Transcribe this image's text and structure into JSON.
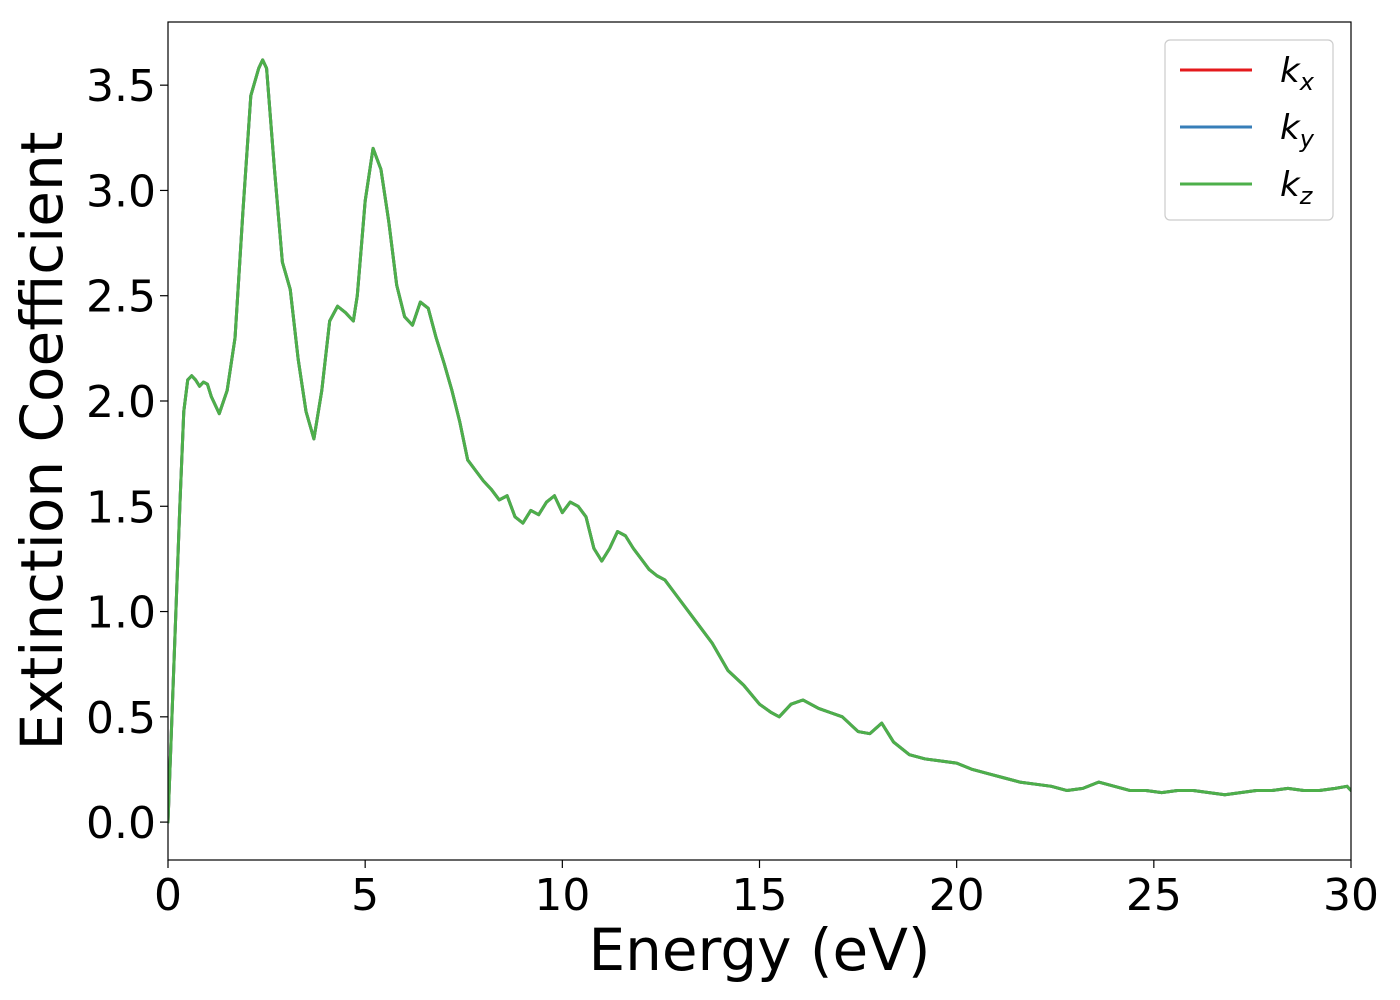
{
  "chart_data": {
    "type": "line",
    "title": "",
    "xlabel": "Energy (eV)",
    "ylabel": "Extinction Coefficient",
    "xlim": [
      0,
      30
    ],
    "ylim": [
      -0.18,
      3.8
    ],
    "xticks": [
      0,
      5,
      10,
      15,
      20,
      25,
      30
    ],
    "xtick_labels": [
      "0",
      "5",
      "10",
      "15",
      "20",
      "25",
      "30"
    ],
    "yticks": [
      0.0,
      0.5,
      1.0,
      1.5,
      2.0,
      2.5,
      3.0,
      3.5
    ],
    "ytick_labels": [
      "0.0",
      "0.5",
      "1.0",
      "1.5",
      "2.0",
      "2.5",
      "3.0",
      "3.5"
    ],
    "grid": false,
    "legend_position": "top-right",
    "x": [
      0,
      0.1,
      0.2,
      0.3,
      0.4,
      0.5,
      0.6,
      0.7,
      0.8,
      0.9,
      1.0,
      1.1,
      1.3,
      1.5,
      1.7,
      1.9,
      2.1,
      2.3,
      2.4,
      2.5,
      2.7,
      2.9,
      3.1,
      3.3,
      3.5,
      3.7,
      3.9,
      4.1,
      4.3,
      4.5,
      4.7,
      4.8,
      5.0,
      5.2,
      5.4,
      5.6,
      5.8,
      6.0,
      6.2,
      6.4,
      6.6,
      6.8,
      7.0,
      7.2,
      7.4,
      7.6,
      7.8,
      8.0,
      8.2,
      8.4,
      8.6,
      8.8,
      9.0,
      9.2,
      9.4,
      9.6,
      9.8,
      10.0,
      10.2,
      10.4,
      10.6,
      10.8,
      11.0,
      11.2,
      11.4,
      11.6,
      11.8,
      12.0,
      12.2,
      12.4,
      12.6,
      12.8,
      13.0,
      13.4,
      13.8,
      14.2,
      14.6,
      15.0,
      15.3,
      15.5,
      15.8,
      16.1,
      16.5,
      16.8,
      17.1,
      17.5,
      17.8,
      18.1,
      18.4,
      18.8,
      19.2,
      19.6,
      20.0,
      20.4,
      20.8,
      21.2,
      21.6,
      22.0,
      22.4,
      22.8,
      23.2,
      23.6,
      24.0,
      24.4,
      24.8,
      25.2,
      25.6,
      26.0,
      26.4,
      26.8,
      27.2,
      27.6,
      28.0,
      28.4,
      28.8,
      29.2,
      29.6,
      29.9,
      30.0
    ],
    "series": [
      {
        "name": "k_x",
        "label_main": "k",
        "label_sub": "x",
        "color": "#e41a1c",
        "values": [
          0.0,
          0.5,
          1.0,
          1.5,
          1.95,
          2.1,
          2.12,
          2.1,
          2.07,
          2.09,
          2.08,
          2.02,
          1.94,
          2.05,
          2.3,
          2.9,
          3.45,
          3.58,
          3.62,
          3.58,
          3.1,
          2.66,
          2.53,
          2.2,
          1.95,
          1.82,
          2.05,
          2.38,
          2.45,
          2.42,
          2.38,
          2.5,
          2.95,
          3.2,
          3.1,
          2.85,
          2.55,
          2.4,
          2.36,
          2.47,
          2.44,
          2.3,
          2.18,
          2.05,
          1.9,
          1.72,
          1.67,
          1.62,
          1.58,
          1.53,
          1.55,
          1.45,
          1.42,
          1.48,
          1.46,
          1.52,
          1.55,
          1.47,
          1.52,
          1.5,
          1.45,
          1.3,
          1.24,
          1.3,
          1.38,
          1.36,
          1.3,
          1.25,
          1.2,
          1.17,
          1.15,
          1.1,
          1.05,
          0.95,
          0.85,
          0.72,
          0.65,
          0.56,
          0.52,
          0.5,
          0.56,
          0.58,
          0.54,
          0.52,
          0.5,
          0.43,
          0.42,
          0.47,
          0.38,
          0.32,
          0.3,
          0.29,
          0.28,
          0.25,
          0.23,
          0.21,
          0.19,
          0.18,
          0.17,
          0.15,
          0.16,
          0.19,
          0.17,
          0.15,
          0.15,
          0.14,
          0.15,
          0.15,
          0.14,
          0.13,
          0.14,
          0.15,
          0.15,
          0.16,
          0.15,
          0.15,
          0.16,
          0.17,
          0.15
        ]
      },
      {
        "name": "k_y",
        "label_main": "k",
        "label_sub": "y",
        "color": "#377eb8",
        "values": [
          0.0,
          0.5,
          1.0,
          1.5,
          1.95,
          2.1,
          2.12,
          2.1,
          2.07,
          2.09,
          2.08,
          2.02,
          1.94,
          2.05,
          2.3,
          2.9,
          3.45,
          3.58,
          3.62,
          3.58,
          3.1,
          2.66,
          2.53,
          2.2,
          1.95,
          1.82,
          2.05,
          2.38,
          2.45,
          2.42,
          2.38,
          2.5,
          2.95,
          3.2,
          3.1,
          2.85,
          2.55,
          2.4,
          2.36,
          2.47,
          2.44,
          2.3,
          2.18,
          2.05,
          1.9,
          1.72,
          1.67,
          1.62,
          1.58,
          1.53,
          1.55,
          1.45,
          1.42,
          1.48,
          1.46,
          1.52,
          1.55,
          1.47,
          1.52,
          1.5,
          1.45,
          1.3,
          1.24,
          1.3,
          1.38,
          1.36,
          1.3,
          1.25,
          1.2,
          1.17,
          1.15,
          1.1,
          1.05,
          0.95,
          0.85,
          0.72,
          0.65,
          0.56,
          0.52,
          0.5,
          0.56,
          0.58,
          0.54,
          0.52,
          0.5,
          0.43,
          0.42,
          0.47,
          0.38,
          0.32,
          0.3,
          0.29,
          0.28,
          0.25,
          0.23,
          0.21,
          0.19,
          0.18,
          0.17,
          0.15,
          0.16,
          0.19,
          0.17,
          0.15,
          0.15,
          0.14,
          0.15,
          0.15,
          0.14,
          0.13,
          0.14,
          0.15,
          0.15,
          0.16,
          0.15,
          0.15,
          0.16,
          0.17,
          0.15
        ]
      },
      {
        "name": "k_z",
        "label_main": "k",
        "label_sub": "z",
        "color": "#4daf4a",
        "values": [
          0.0,
          0.5,
          1.0,
          1.5,
          1.95,
          2.1,
          2.12,
          2.1,
          2.07,
          2.09,
          2.08,
          2.02,
          1.94,
          2.05,
          2.3,
          2.9,
          3.45,
          3.58,
          3.62,
          3.58,
          3.1,
          2.66,
          2.53,
          2.2,
          1.95,
          1.82,
          2.05,
          2.38,
          2.45,
          2.42,
          2.38,
          2.5,
          2.95,
          3.2,
          3.1,
          2.85,
          2.55,
          2.4,
          2.36,
          2.47,
          2.44,
          2.3,
          2.18,
          2.05,
          1.9,
          1.72,
          1.67,
          1.62,
          1.58,
          1.53,
          1.55,
          1.45,
          1.42,
          1.48,
          1.46,
          1.52,
          1.55,
          1.47,
          1.52,
          1.5,
          1.45,
          1.3,
          1.24,
          1.3,
          1.38,
          1.36,
          1.3,
          1.25,
          1.2,
          1.17,
          1.15,
          1.1,
          1.05,
          0.95,
          0.85,
          0.72,
          0.65,
          0.56,
          0.52,
          0.5,
          0.56,
          0.58,
          0.54,
          0.52,
          0.5,
          0.43,
          0.42,
          0.47,
          0.38,
          0.32,
          0.3,
          0.29,
          0.28,
          0.25,
          0.23,
          0.21,
          0.19,
          0.18,
          0.17,
          0.15,
          0.16,
          0.19,
          0.17,
          0.15,
          0.15,
          0.14,
          0.15,
          0.15,
          0.14,
          0.13,
          0.14,
          0.15,
          0.15,
          0.16,
          0.15,
          0.15,
          0.16,
          0.17,
          0.15
        ]
      }
    ]
  }
}
